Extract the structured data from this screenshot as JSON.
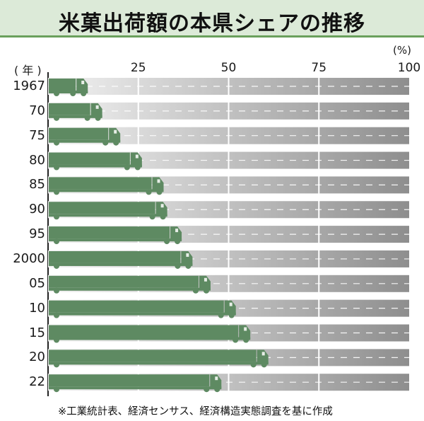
{
  "title": "米菓出荷額の本県シェアの推移",
  "unit": "(%)",
  "year_axis_label": "( 年 )",
  "source_note": "※工業統計表、経済センサス、経済構造実態調査を基に作成",
  "colors": {
    "truck": "#5e8a62",
    "title_band": "#dcead8",
    "title_underline": "#6aa05c",
    "track_dark": "#8e8e8e",
    "track_light": "#f3f3f3"
  },
  "chart_data": {
    "type": "bar",
    "orientation": "horizontal",
    "title": "米菓出荷額の本県シェアの推移",
    "xlabel": "(%)",
    "ylabel": "( 年 )",
    "xlim": [
      0,
      100
    ],
    "x_ticks": [
      25,
      50,
      75,
      100
    ],
    "categories": [
      "1967",
      "70",
      "75",
      "80",
      "85",
      "90",
      "95",
      "2000",
      "05",
      "10",
      "15",
      "20",
      "22"
    ],
    "values": [
      11,
      15,
      20,
      26,
      32,
      33,
      37,
      40,
      45,
      52,
      56,
      61,
      48
    ],
    "grid": true
  }
}
